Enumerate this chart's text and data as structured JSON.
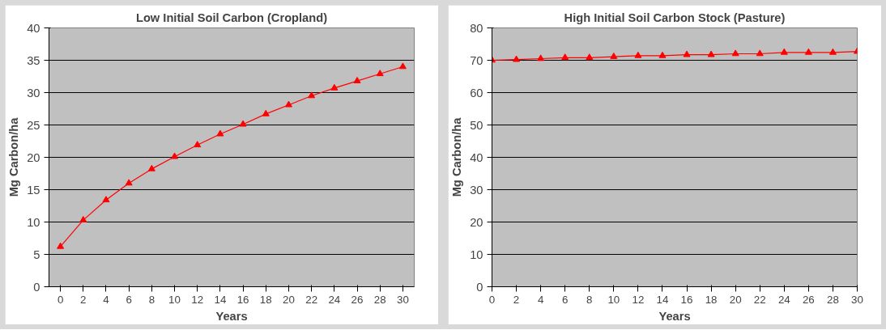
{
  "chart_data": [
    {
      "type": "line",
      "title": "Low Initial Soil Carbon (Cropland)",
      "xlabel": "Years",
      "ylabel": "Mg Carbon/ha",
      "x": [
        0,
        2,
        4,
        6,
        8,
        10,
        12,
        14,
        16,
        18,
        20,
        22,
        24,
        26,
        28,
        30
      ],
      "xlim": [
        -1,
        31
      ],
      "xticks": [
        0,
        2,
        4,
        6,
        8,
        10,
        12,
        14,
        16,
        18,
        20,
        22,
        24,
        26,
        28,
        30
      ],
      "series": [
        {
          "color": "#ff0000",
          "values": [
            6.2,
            10.3,
            13.4,
            16.0,
            18.2,
            20.1,
            21.9,
            23.6,
            25.1,
            26.7,
            28.1,
            29.5,
            30.7,
            31.8,
            32.9,
            34.0
          ]
        }
      ],
      "ylim": [
        0,
        40
      ],
      "yticks": [
        0,
        5,
        10,
        15,
        20,
        25,
        30,
        35,
        40
      ],
      "grid": "y",
      "marker": "triangle",
      "line_style": "solid"
    },
    {
      "type": "line",
      "title": "High Initial Soil Carbon Stock (Pasture)",
      "xlabel": "Years",
      "ylabel": "Mg Carbon/ha",
      "x": [
        0,
        2,
        4,
        6,
        8,
        10,
        12,
        14,
        16,
        18,
        20,
        22,
        24,
        26,
        28,
        30
      ],
      "series": [
        {
          "color": "#ff0000",
          "values": [
            70.0,
            70.2,
            70.5,
            70.8,
            70.8,
            71.1,
            71.4,
            71.4,
            71.7,
            71.7,
            72.0,
            72.0,
            72.4,
            72.4,
            72.4,
            72.7
          ]
        }
      ],
      "xlim": [
        0,
        30
      ],
      "xticks": [
        0,
        2,
        4,
        6,
        8,
        10,
        12,
        14,
        16,
        18,
        20,
        22,
        24,
        26,
        28,
        30
      ],
      "ylim": [
        0,
        80
      ],
      "yticks": [
        0,
        10,
        20,
        30,
        40,
        50,
        60,
        70,
        80
      ],
      "grid": "y",
      "marker": "triangle",
      "line_style": "solid"
    }
  ]
}
